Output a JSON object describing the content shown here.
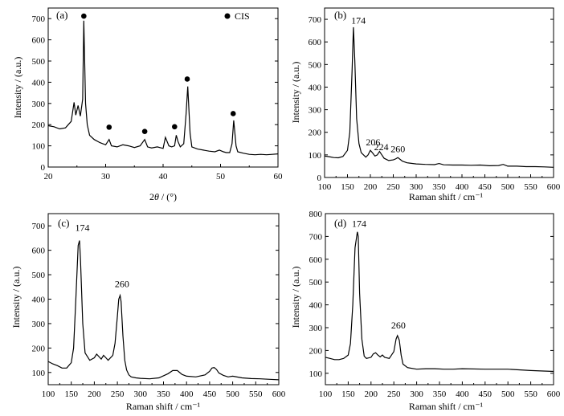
{
  "figure_colors": {
    "line": "#000000",
    "background": "#ffffff"
  },
  "chart_data": [
    {
      "panel_label": "(a)",
      "type": "line",
      "xlabel_prefix": "2",
      "xlabel_symbol": "θ",
      "xlabel_suffix": " / (°)",
      "ylabel": "Intensity / (a.u.)",
      "xlim": [
        20,
        60
      ],
      "ylim": [
        0,
        750
      ],
      "xticks": [
        20,
        30,
        40,
        50,
        60
      ],
      "yticks": [
        0,
        100,
        200,
        300,
        400,
        500,
        600,
        700
      ],
      "grid": false,
      "legend": {
        "position": "top-right",
        "marker": "filled-circle",
        "label": "CIS"
      },
      "series": [
        {
          "x": [
            20,
            21,
            22,
            23,
            23.5,
            24,
            24.5,
            24.8,
            25.2,
            25.6,
            26,
            26.2,
            26.5,
            26.8,
            27.2,
            28,
            29,
            30,
            30.6,
            31,
            32,
            33,
            34,
            35,
            36,
            36.8,
            37.3,
            38,
            39,
            40,
            40.4,
            41,
            41.5,
            42,
            42.3,
            42.6,
            43,
            43.6,
            44,
            44.3,
            44.7,
            45,
            46,
            47,
            48,
            49,
            49.8,
            50.5,
            51,
            51.6,
            52,
            52.3,
            52.7,
            53,
            54,
            55,
            56,
            57,
            58,
            59,
            60
          ],
          "y": [
            195,
            190,
            180,
            185,
            200,
            215,
            305,
            245,
            290,
            240,
            320,
            690,
            300,
            200,
            150,
            130,
            115,
            105,
            130,
            100,
            95,
            105,
            100,
            92,
            100,
            130,
            95,
            90,
            95,
            88,
            140,
            100,
            95,
            100,
            150,
            120,
            95,
            110,
            250,
            380,
            160,
            95,
            85,
            80,
            75,
            72,
            80,
            72,
            68,
            68,
            110,
            220,
            100,
            72,
            65,
            60,
            58,
            60,
            58,
            60,
            62
          ]
        },
        {
          "name": "CIS",
          "style": "markers",
          "x": [
            26.2,
            30.6,
            36.8,
            42.0,
            44.2,
            52.2
          ],
          "y": [
            712,
            188,
            168,
            190,
            415,
            252
          ]
        }
      ]
    },
    {
      "panel_label": "(b)",
      "type": "line",
      "xlabel": "Raman shift / cm⁻¹",
      "ylabel": "Intensity / (a.u.)",
      "xlim": [
        100,
        600
      ],
      "ylim": [
        0,
        750
      ],
      "xticks": [
        100,
        150,
        200,
        250,
        300,
        350,
        400,
        450,
        500,
        550,
        600
      ],
      "yticks": [
        0,
        100,
        200,
        300,
        400,
        500,
        600,
        700
      ],
      "grid": false,
      "annotations": [
        {
          "text": "174",
          "x": 174,
          "y": 660
        },
        {
          "text": "206",
          "x": 206,
          "y": 120
        },
        {
          "text": "224",
          "x": 224,
          "y": 100
        },
        {
          "text": "260",
          "x": 260,
          "y": 90
        }
      ],
      "series": [
        {
          "x": [
            100,
            110,
            120,
            130,
            140,
            150,
            155,
            160,
            163,
            166,
            170,
            175,
            180,
            190,
            195,
            200,
            205,
            210,
            215,
            220,
            225,
            230,
            240,
            250,
            255,
            260,
            265,
            270,
            280,
            300,
            320,
            340,
            350,
            360,
            380,
            400,
            420,
            440,
            460,
            480,
            490,
            500,
            520,
            540,
            560,
            580,
            600
          ],
          "y": [
            95,
            92,
            88,
            87,
            93,
            120,
            200,
            470,
            665,
            520,
            260,
            150,
            110,
            90,
            100,
            120,
            108,
            95,
            100,
            115,
            100,
            85,
            75,
            78,
            82,
            88,
            80,
            72,
            65,
            60,
            58,
            57,
            62,
            56,
            55,
            55,
            54,
            55,
            52,
            53,
            58,
            50,
            50,
            48,
            48,
            47,
            45
          ]
        }
      ]
    },
    {
      "panel_label": "(c)",
      "type": "line",
      "xlabel": "Raman shift / cm⁻¹",
      "ylabel": "Intensity / (a.u.)",
      "xlim": [
        100,
        600
      ],
      "ylim": [
        50,
        750
      ],
      "xticks": [
        100,
        150,
        200,
        250,
        300,
        350,
        400,
        450,
        500,
        550,
        600
      ],
      "yticks": [
        100,
        200,
        300,
        400,
        500,
        600,
        700
      ],
      "grid": false,
      "annotations": [
        {
          "text": "174",
          "x": 174,
          "y": 660
        },
        {
          "text": "260",
          "x": 260,
          "y": 430
        }
      ],
      "series": [
        {
          "x": [
            100,
            110,
            120,
            130,
            140,
            150,
            155,
            160,
            165,
            168,
            170,
            175,
            180,
            190,
            200,
            205,
            210,
            215,
            220,
            225,
            230,
            240,
            245,
            250,
            253,
            256,
            258,
            262,
            266,
            270,
            275,
            280,
            290,
            300,
            320,
            340,
            360,
            370,
            380,
            390,
            400,
            420,
            440,
            450,
            455,
            460,
            465,
            470,
            480,
            490,
            500,
            520,
            540,
            560,
            580,
            600
          ],
          "y": [
            145,
            135,
            128,
            118,
            118,
            140,
            200,
            400,
            620,
            640,
            560,
            300,
            180,
            150,
            160,
            175,
            165,
            155,
            170,
            160,
            150,
            170,
            220,
            330,
            400,
            415,
            390,
            250,
            150,
            110,
            90,
            82,
            78,
            76,
            74,
            78,
            95,
            108,
            108,
            92,
            85,
            82,
            90,
            105,
            118,
            120,
            112,
            98,
            88,
            82,
            85,
            78,
            75,
            74,
            72,
            70
          ]
        }
      ]
    },
    {
      "panel_label": "(d)",
      "type": "line",
      "xlabel": "Raman shift / cm⁻¹",
      "ylabel": "Intensity / (a.u.)",
      "xlim": [
        100,
        600
      ],
      "ylim": [
        50,
        800
      ],
      "xticks": [
        100,
        150,
        200,
        250,
        300,
        350,
        400,
        450,
        500,
        550,
        600
      ],
      "yticks": [
        100,
        200,
        300,
        400,
        500,
        600,
        700,
        800
      ],
      "grid": false,
      "annotations": [
        {
          "text": "174",
          "x": 174,
          "y": 720
        },
        {
          "text": "260",
          "x": 260,
          "y": 275
        }
      ],
      "series": [
        {
          "x": [
            100,
            110,
            120,
            130,
            140,
            150,
            155,
            160,
            165,
            170,
            172,
            175,
            180,
            185,
            190,
            200,
            205,
            210,
            215,
            220,
            225,
            230,
            240,
            250,
            255,
            258,
            262,
            266,
            270,
            280,
            300,
            320,
            340,
            360,
            380,
            400,
            450,
            500,
            550,
            600
          ],
          "y": [
            170,
            165,
            160,
            160,
            165,
            180,
            230,
            400,
            650,
            720,
            700,
            450,
            250,
            175,
            165,
            170,
            185,
            190,
            180,
            172,
            180,
            170,
            165,
            195,
            250,
            265,
            245,
            180,
            140,
            125,
            118,
            120,
            120,
            118,
            118,
            120,
            118,
            118,
            112,
            108
          ]
        }
      ]
    }
  ]
}
